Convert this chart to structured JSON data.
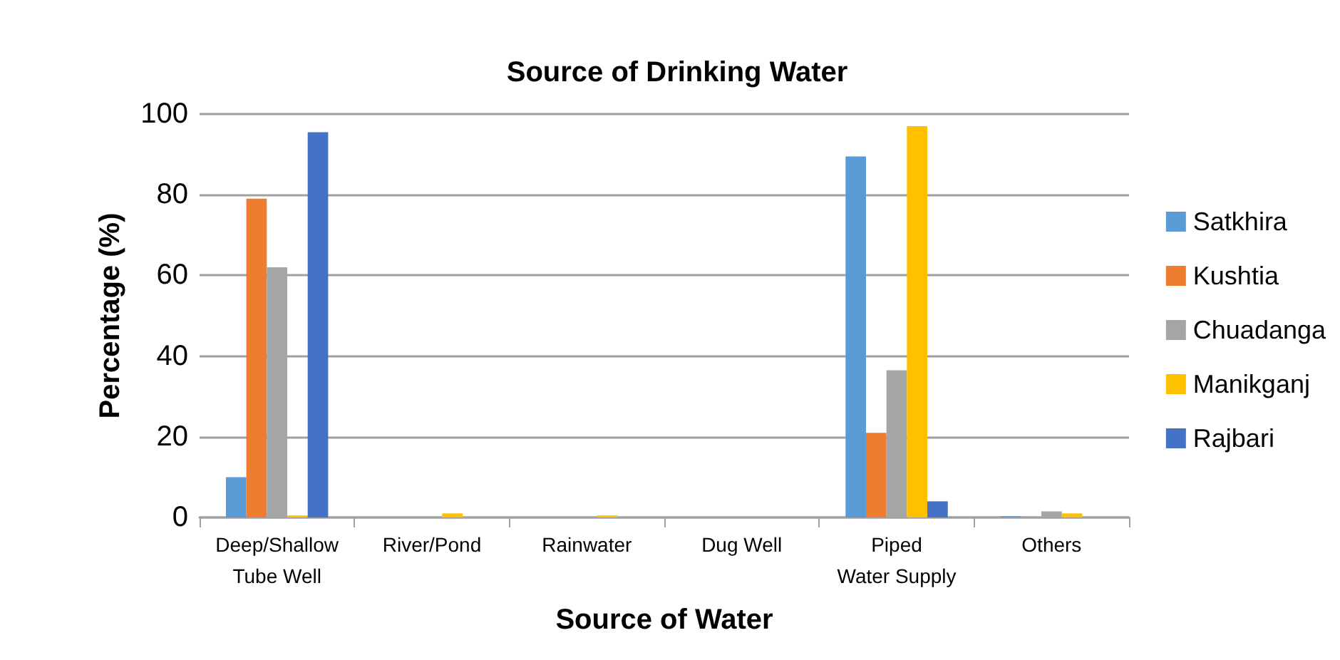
{
  "chart_data": {
    "type": "bar",
    "title": "Source of Drinking Water",
    "xlabel": "Source of Water",
    "ylabel": "Percentage (%)",
    "categories": [
      "Deep/Shallow Tube Well",
      "River/Pond",
      "Rainwater",
      "Dug Well",
      "Piped Water Supply",
      "Others"
    ],
    "series": [
      {
        "name": "Satkhira",
        "color": "#5b9bd5",
        "values": [
          10,
          0,
          0,
          0,
          89.5,
          0.3
        ]
      },
      {
        "name": "Kushtia",
        "color": "#ed7d31",
        "values": [
          79,
          0,
          0,
          0,
          21,
          0
        ]
      },
      {
        "name": "Chuadanga",
        "color": "#a5a5a5",
        "values": [
          62,
          0,
          0,
          0,
          36.5,
          1.5
        ]
      },
      {
        "name": "Manikganj",
        "color": "#ffc000",
        "values": [
          0.5,
          1,
          0.5,
          0,
          97,
          1
        ]
      },
      {
        "name": "Rajbari",
        "color": "#4472c4",
        "values": [
          95.5,
          0,
          0,
          0,
          4,
          0
        ]
      }
    ],
    "ylim": [
      0,
      100
    ],
    "yticks": [
      0,
      20,
      40,
      60,
      80,
      100
    ],
    "grid": "y",
    "legend": "right"
  }
}
